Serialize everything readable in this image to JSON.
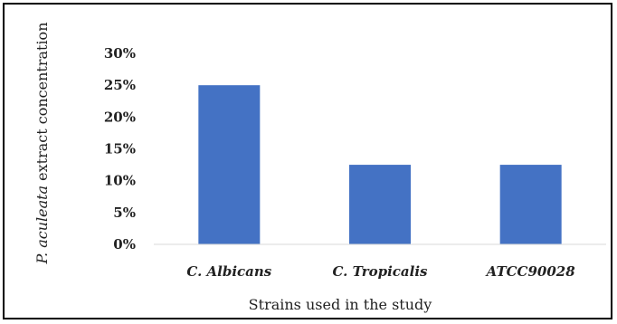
{
  "chart_data": {
    "type": "bar",
    "categories": [
      "C. Albicans",
      "C. Tropicalis",
      "ATCC90028"
    ],
    "values": [
      25,
      12.5,
      12.5
    ],
    "y_ticks": [
      0,
      5,
      10,
      15,
      20,
      25,
      30
    ],
    "y_tick_suffix": "%",
    "ylim": [
      0,
      30
    ],
    "xlabel": "Strains used in the study",
    "ylabel_italic": "P. aculeata",
    "ylabel_rest": " extract concentration",
    "grid": false,
    "legend": "none",
    "bar_color": "#4472c4",
    "axis_color": "#d9d9d9"
  }
}
